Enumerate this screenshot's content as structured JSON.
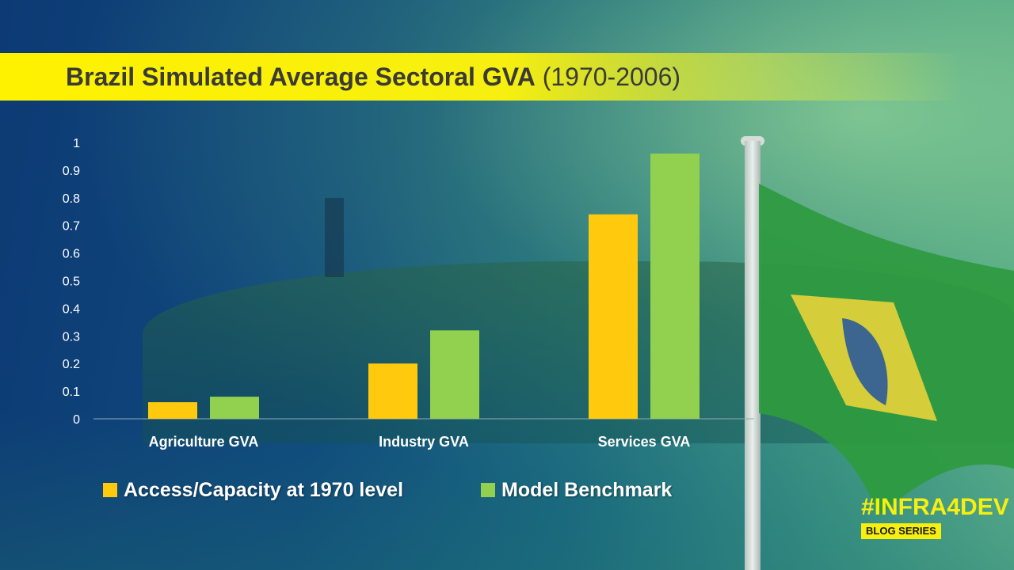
{
  "header": {
    "title_main": "Brazil Simulated Average Sectoral GVA",
    "title_years": "(1970-2006)"
  },
  "chart_data": {
    "type": "bar",
    "title": "Brazil Simulated Average Sectoral GVA (1970-2006)",
    "categories": [
      "Agriculture GVA",
      "Industry GVA",
      "Services GVA"
    ],
    "series": [
      {
        "name": "Access/Capacity at 1970 level",
        "values": [
          0.06,
          0.2,
          0.74
        ],
        "color": "#ffc90e"
      },
      {
        "name": "Model Benchmark",
        "values": [
          0.08,
          0.32,
          0.96
        ],
        "color": "#92d050"
      }
    ],
    "ylim": [
      0,
      1
    ],
    "yticks": [
      "0",
      "0.1",
      "0.2",
      "0.3",
      "0.4",
      "0.5",
      "0.6",
      "0.7",
      "0.8",
      "0.9",
      "1"
    ],
    "grid": false,
    "legend_position": "bottom"
  },
  "brand": {
    "hashtag": "#INFRA4DEV",
    "subtitle": "BLOG SERIES"
  },
  "colors": {
    "title_bar": "#fff200",
    "background": "#0d3a74"
  }
}
